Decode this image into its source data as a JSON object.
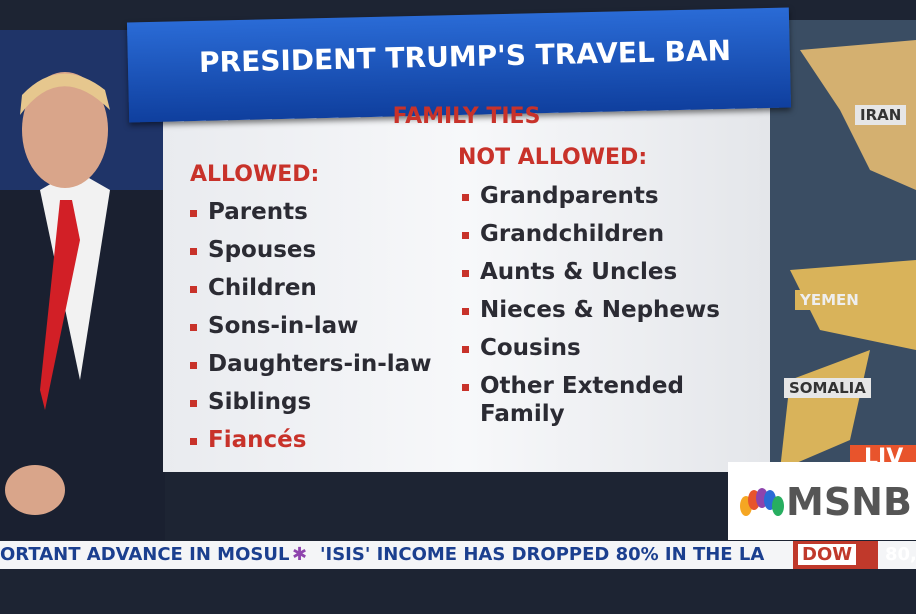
{
  "banner": {
    "title": "PRESIDENT TRUMP'S TRAVEL BAN",
    "subtitle": "FAMILY TIES"
  },
  "allowed": {
    "heading": "ALLOWED:",
    "items": [
      "Parents",
      "Spouses",
      "Children",
      "Sons-in-law",
      "Daughters-in-law",
      "Siblings",
      "Fiancés"
    ]
  },
  "not_allowed": {
    "heading": "NOT ALLOWED:",
    "items": [
      "Grandparents",
      "Grandchildren",
      "Aunts & Uncles",
      "Nieces & Nephews",
      "Cousins",
      "Other Extended Family"
    ]
  },
  "map": {
    "labels": [
      "IRAN",
      "YEMEN",
      "SOMALIA"
    ]
  },
  "network": {
    "live": "LIV",
    "logo": "MSNB"
  },
  "ticker": {
    "items": [
      "ORTANT ADVANCE IN MOSUL",
      "'ISIS' INCOME HAS DROPPED 80% IN THE LA"
    ],
    "index_name": "DOW",
    "index_value": "80,"
  }
}
